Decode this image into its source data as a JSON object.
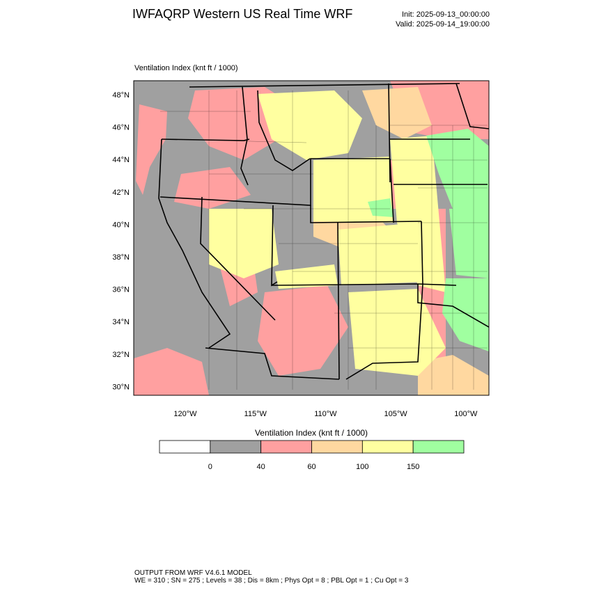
{
  "header": {
    "title": "IWFAQRP Western US Real Time WRF",
    "init": "Init: 2025-09-13_00:00:00",
    "valid": "Valid: 2025-09-14_19:00:00"
  },
  "map": {
    "subtitle": "Ventilation Index   (knt ft / 1000)",
    "lat_labels": [
      "48°N",
      "46°N",
      "44°N",
      "42°N",
      "40°N",
      "38°N",
      "36°N",
      "34°N",
      "32°N",
      "30°N"
    ],
    "lon_labels": [
      "120°W",
      "115°W",
      "110°W",
      "105°W",
      "100°W"
    ]
  },
  "colorbar": {
    "title": "Ventilation Index   (knt ft / 1000)",
    "colors": [
      "#ffffff",
      "#a0a0a0",
      "#ffa0a0",
      "#ffd8a0",
      "#ffffa0",
      "#a0ffa0"
    ],
    "labels": [
      0,
      40,
      60,
      100,
      150
    ]
  },
  "footer": {
    "line1": "OUTPUT FROM WRF V4.6.1 MODEL",
    "line2": "WE = 310 ; SN = 275 ; Levels = 38 ; Dis = 8km ; Phys Opt = 8 ; PBL Opt = 1 ; Cu Opt = 3"
  }
}
